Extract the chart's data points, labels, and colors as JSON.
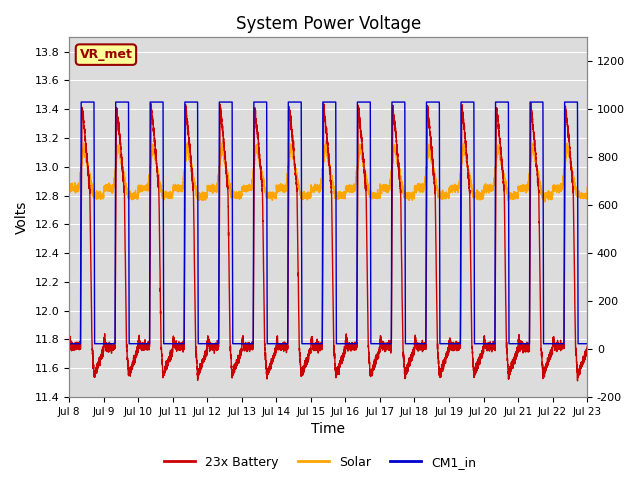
{
  "title": "System Power Voltage",
  "xlabel": "Time",
  "ylabel": "Volts",
  "xlim_start": 0,
  "xlim_end": 15,
  "ylim_left": [
    11.4,
    13.9
  ],
  "ylim_right": [
    -200,
    1300
  ],
  "xtick_labels": [
    "Jul 8",
    "Jul 9",
    "Jul 10",
    "Jul 11",
    "Jul 12",
    "Jul 13",
    "Jul 14",
    "Jul 15",
    "Jul 16",
    "Jul 17",
    "Jul 18",
    "Jul 19",
    "Jul 20",
    "Jul 21",
    "Jul 22",
    "Jul 23"
  ],
  "ytick_left": [
    11.4,
    11.6,
    11.8,
    12.0,
    12.2,
    12.4,
    12.6,
    12.8,
    13.0,
    13.2,
    13.4,
    13.6,
    13.8
  ],
  "ytick_right": [
    -200,
    0,
    200,
    400,
    600,
    800,
    1000,
    1200
  ],
  "color_battery": "#CC0000",
  "color_solar": "#FFA500",
  "color_cm1": "#0000CC",
  "legend_labels": [
    "23x Battery",
    "Solar",
    "CM1_in"
  ],
  "annotation_text": "VR_met",
  "annotation_box_color": "#FFFF99",
  "annotation_text_color": "#990000",
  "plot_bg_color": "#DCDCDC",
  "grid_color": "#FFFFFF",
  "n_days": 15,
  "pts_per_day": 480
}
